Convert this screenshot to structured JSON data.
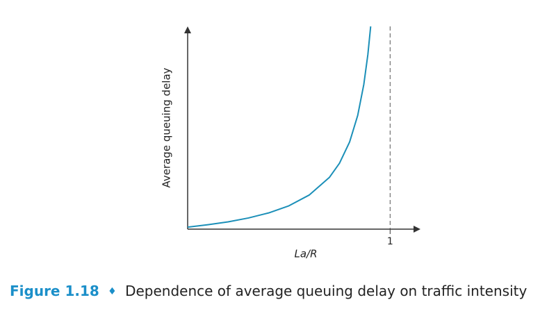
{
  "chart_data": {
    "type": "line",
    "figure_label": "Figure 1.18",
    "caption_separator": "♦",
    "caption": "Dependence of average queuing delay on traffic intensity",
    "xlabel": "La/R",
    "ylabel": "Average queuing delay",
    "x": [
      0,
      0.1,
      0.2,
      0.3,
      0.4,
      0.5,
      0.6,
      0.7,
      0.75,
      0.8,
      0.84,
      0.87,
      0.89,
      0.904
    ],
    "values": [
      1,
      2.2,
      3.6,
      5.5,
      8,
      11.5,
      16.8,
      25.5,
      32.5,
      43,
      56.1,
      71.3,
      86,
      100
    ],
    "color": "#1b8fb8",
    "xlim": [
      0,
      1.15
    ],
    "ylim": [
      0,
      100
    ],
    "xticks": [
      1
    ]
  }
}
